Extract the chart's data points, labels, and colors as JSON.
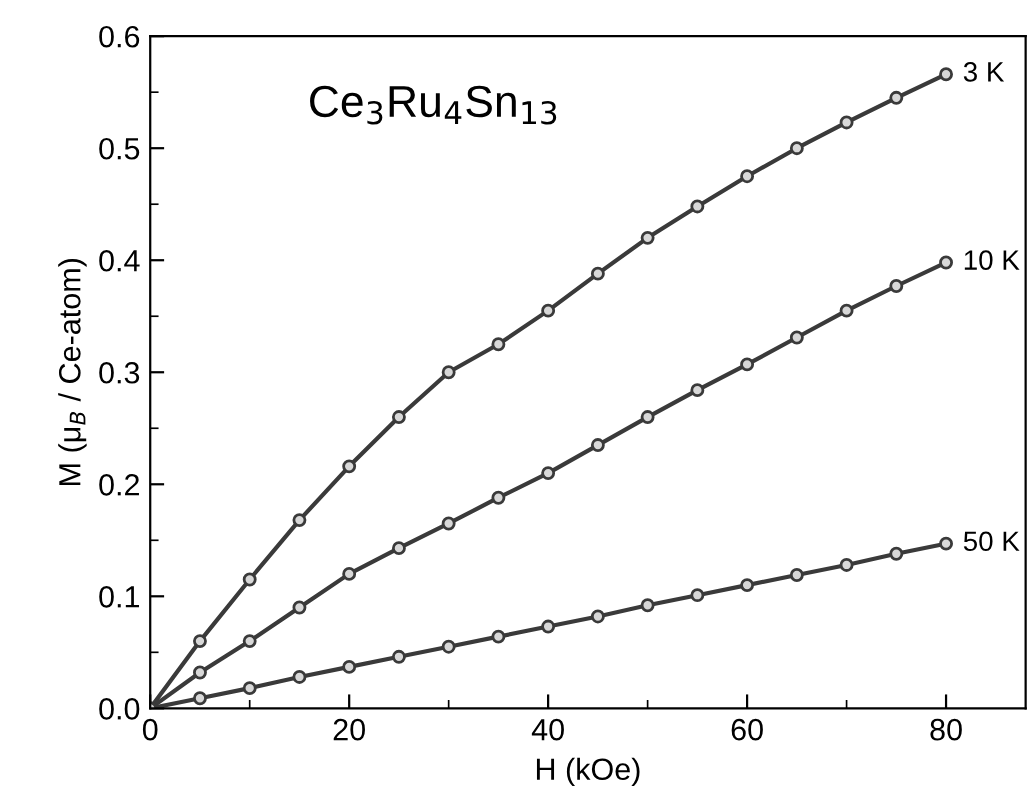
{
  "chart_data": {
    "type": "line",
    "xlabel": "H (kOe)",
    "ylabel": "M (μ$_{B}$ / Ce-atom)",
    "annotations": [
      "Ce$_{3}$Ru$_{4}$Sn$_{13}$"
    ],
    "x": [
      0,
      5,
      10,
      15,
      20,
      25,
      30,
      35,
      40,
      45,
      50,
      55,
      60,
      65,
      70,
      75,
      80
    ],
    "series": [
      {
        "name": "3 K",
        "color": "#3a3a3a",
        "values": [
          0,
          0.06,
          0.115,
          0.168,
          0.216,
          0.26,
          0.3,
          0.325,
          0.355,
          0.388,
          0.42,
          0.448,
          0.475,
          0.5,
          0.523,
          0.545,
          0.566
        ]
      },
      {
        "name": "10 K",
        "color": "#3a3a3a",
        "values": [
          0,
          0.032,
          0.06,
          0.09,
          0.12,
          0.143,
          0.165,
          0.188,
          0.21,
          0.235,
          0.26,
          0.284,
          0.307,
          0.331,
          0.355,
          0.377,
          0.398
        ]
      },
      {
        "name": "50 K",
        "color": "#3a3a3a",
        "values": [
          0,
          0.009,
          0.018,
          0.028,
          0.037,
          0.046,
          0.055,
          0.064,
          0.073,
          0.082,
          0.092,
          0.101,
          0.11,
          0.119,
          0.128,
          0.138,
          0.147
        ]
      }
    ],
    "xlim": [
      0,
      88
    ],
    "ylim": [
      0,
      0.6
    ],
    "xticks": [
      0,
      20,
      40,
      60,
      80
    ],
    "yticks": [
      {
        "value": 0,
        "label": "0.0"
      },
      0.1,
      0.2,
      0.3,
      0.4,
      0.5,
      0.6
    ],
    "marker": "circle",
    "line_style": "solid",
    "grid": false,
    "legend": false
  }
}
